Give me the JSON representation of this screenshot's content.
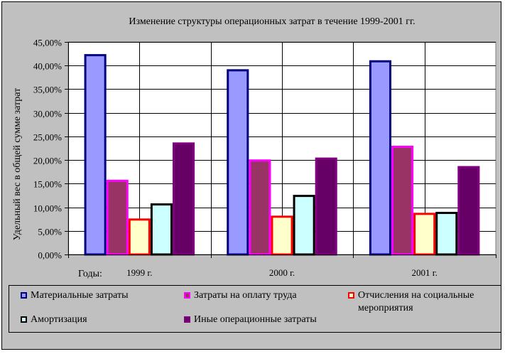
{
  "chart_data": {
    "type": "bar",
    "title": "Изменение структуры операционных затрат в течение 1999-2001 гг.",
    "ylabel": "Удельный вес в общей сумме затрат",
    "xlabel": "Годы:",
    "categories": [
      "1999 г.",
      "2000 г.",
      "2001 г."
    ],
    "ylim": [
      0,
      45
    ],
    "yticks": [
      "0,00%",
      "5,00%",
      "10,00%",
      "15,00%",
      "20,00%",
      "25,00%",
      "30,00%",
      "35,00%",
      "40,00%",
      "45,00%"
    ],
    "grid": true,
    "legend_position": "bottom",
    "series": [
      {
        "name": "Материальные затраты",
        "values": [
          42.2,
          39.0,
          40.9
        ],
        "fill": "#9999ff",
        "border": "#000080"
      },
      {
        "name": "Затраты на оплату труда",
        "values": [
          15.6,
          19.9,
          22.8
        ],
        "fill": "#993366",
        "border": "#ff00ff"
      },
      {
        "name": "Отчисления на социальные мероприятия",
        "values": [
          7.4,
          8.0,
          8.6
        ],
        "fill": "#ffffcc",
        "border": "#ff0000"
      },
      {
        "name": "Амортизация",
        "values": [
          10.6,
          12.4,
          8.8
        ],
        "fill": "#ccffff",
        "border": "#000000"
      },
      {
        "name": "Иные операционные затраты",
        "values": [
          23.5,
          20.3,
          18.5
        ],
        "fill": "#660066",
        "border": "#800080"
      }
    ]
  },
  "legend_layout": [
    "Материальные затраты",
    "Затраты на оплату труда",
    "Отчисления на социальные мероприятия",
    "Амортизация",
    "Иные операционные затраты"
  ]
}
